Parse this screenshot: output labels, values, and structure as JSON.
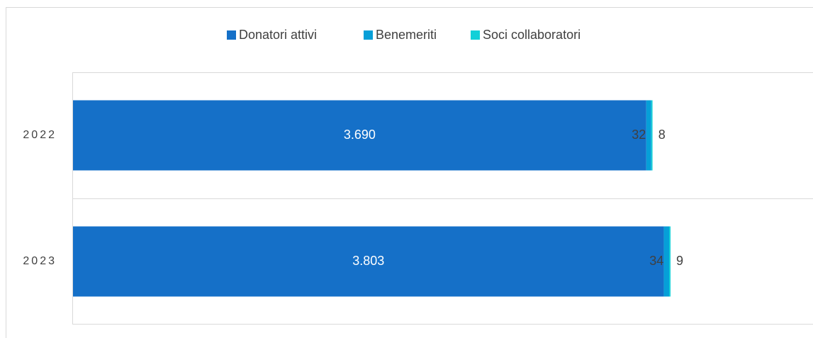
{
  "chart_data": {
    "type": "stacked-bar-horizontal",
    "categories": [
      "2022",
      "2023"
    ],
    "series": [
      {
        "name": "Donatori attivi",
        "color": "#1570c8",
        "values": [
          3690,
          3803
        ],
        "value_labels": [
          "3.690",
          "3.803"
        ]
      },
      {
        "name": "Benemeriti",
        "color": "#069fd8",
        "values": [
          32,
          34
        ]
      },
      {
        "name": "Soci collaboratori",
        "color": "#12d0d8",
        "values": [
          8,
          9
        ]
      }
    ],
    "legend": "top"
  }
}
